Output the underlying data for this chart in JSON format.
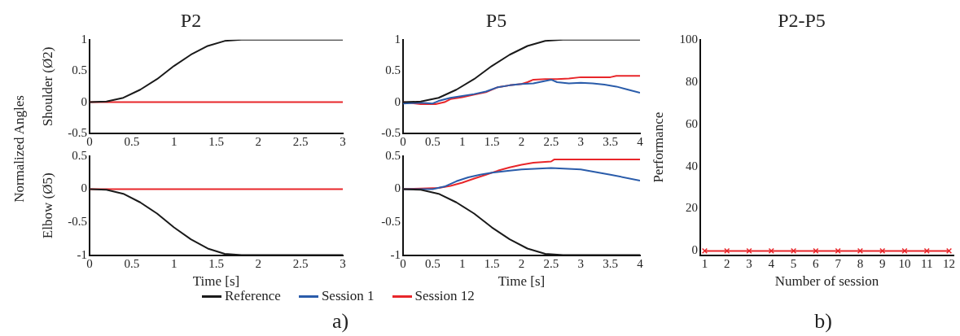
{
  "chart_data": [
    {
      "type": "line",
      "title": "P2",
      "ylabel": "Shoulder (Ø2)",
      "annotations": [
        "Normalized Angles"
      ],
      "xlim": [
        0,
        3
      ],
      "xticks": [
        0,
        0.5,
        1,
        1.5,
        2,
        2.5,
        3
      ],
      "ylim": [
        -0.5,
        1
      ],
      "yticks": [
        -0.5,
        0,
        0.5,
        1
      ],
      "series": [
        {
          "color": "#1a1a1a",
          "x": [
            0,
            0.2,
            0.4,
            0.6,
            0.8,
            1.0,
            1.2,
            1.4,
            1.6,
            1.8,
            3
          ],
          "values": [
            0,
            0.01,
            0.07,
            0.2,
            0.37,
            0.58,
            0.76,
            0.9,
            0.98,
            1.0,
            1.0
          ]
        },
        {
          "color": "#e8262a",
          "x": [
            0,
            3
          ],
          "values": [
            0,
            0
          ]
        }
      ]
    },
    {
      "type": "line",
      "ylabel": "Elbow (Ø5)",
      "xlabel": "Time [s]",
      "xlim": [
        0,
        3
      ],
      "xticks": [
        0,
        0.5,
        1,
        1.5,
        2,
        2.5,
        3
      ],
      "ylim": [
        -1,
        0.5
      ],
      "yticks": [
        -1,
        -0.5,
        0,
        0.5
      ],
      "series": [
        {
          "color": "#1a1a1a",
          "x": [
            0,
            0.2,
            0.4,
            0.6,
            0.8,
            1.0,
            1.2,
            1.4,
            1.6,
            1.8,
            3
          ],
          "values": [
            0,
            -0.01,
            -0.07,
            -0.2,
            -0.37,
            -0.58,
            -0.76,
            -0.9,
            -0.98,
            -1.0,
            -1.0
          ]
        },
        {
          "color": "#e8262a",
          "x": [
            0,
            3
          ],
          "values": [
            0,
            0
          ]
        }
      ]
    },
    {
      "type": "line",
      "title": "P5",
      "xlim": [
        0,
        4
      ],
      "xticks": [
        0,
        0.5,
        1,
        1.5,
        2,
        2.5,
        3,
        3.5,
        4
      ],
      "ylim": [
        -0.5,
        1
      ],
      "yticks": [
        -0.5,
        0,
        0.5,
        1
      ],
      "series": [
        {
          "color": "#1a1a1a",
          "x": [
            0,
            0.3,
            0.6,
            0.9,
            1.2,
            1.5,
            1.8,
            2.1,
            2.4,
            2.7,
            4
          ],
          "values": [
            0,
            0.01,
            0.07,
            0.2,
            0.37,
            0.58,
            0.76,
            0.9,
            0.98,
            1.0,
            1.0
          ]
        },
        {
          "color": "#2a5caa",
          "x": [
            0,
            0.3,
            0.5,
            0.6,
            0.8,
            1.0,
            1.2,
            1.4,
            1.6,
            1.8,
            2.0,
            2.2,
            2.4,
            2.5,
            2.6,
            2.8,
            3.0,
            3.2,
            3.4,
            3.6,
            3.8,
            4.0
          ],
          "values": [
            -0.02,
            -0.01,
            -0.02,
            0.02,
            0.07,
            0.1,
            0.13,
            0.17,
            0.24,
            0.27,
            0.29,
            0.3,
            0.34,
            0.36,
            0.32,
            0.3,
            0.31,
            0.3,
            0.28,
            0.25,
            0.2,
            0.15
          ]
        },
        {
          "color": "#e8262a",
          "x": [
            0,
            0.3,
            0.55,
            0.7,
            0.8,
            1.0,
            1.2,
            1.4,
            1.6,
            1.8,
            2.0,
            2.1,
            2.2,
            2.4,
            2.6,
            2.8,
            3.0,
            3.5,
            3.6,
            4.0
          ],
          "values": [
            0,
            -0.03,
            -0.03,
            0,
            0.05,
            0.08,
            0.12,
            0.16,
            0.24,
            0.27,
            0.29,
            0.32,
            0.36,
            0.37,
            0.37,
            0.38,
            0.4,
            0.4,
            0.42,
            0.42
          ]
        }
      ]
    },
    {
      "type": "line",
      "xlabel": "Time [s]",
      "legend": "bottom",
      "annotations": [
        "a)"
      ],
      "xlim": [
        0,
        4
      ],
      "xticks": [
        0,
        0.5,
        1,
        1.5,
        2,
        2.5,
        3,
        3.5,
        4
      ],
      "ylim": [
        -1,
        0.5
      ],
      "yticks": [
        -1,
        -0.5,
        0,
        0.5
      ],
      "series": [
        {
          "name": "Reference",
          "color": "#1a1a1a",
          "x": [
            0,
            0.3,
            0.6,
            0.9,
            1.2,
            1.5,
            1.8,
            2.1,
            2.4,
            2.7,
            4
          ],
          "values": [
            0,
            -0.01,
            -0.07,
            -0.2,
            -0.37,
            -0.58,
            -0.76,
            -0.9,
            -0.98,
            -1.0,
            -1.0
          ]
        },
        {
          "name": "Session 1",
          "color": "#2a5caa",
          "x": [
            0,
            0.5,
            0.7,
            0.9,
            1.1,
            1.3,
            1.5,
            1.8,
            2.0,
            2.5,
            3.0,
            3.5,
            4.0
          ],
          "values": [
            0,
            0,
            0.04,
            0.12,
            0.18,
            0.22,
            0.25,
            0.28,
            0.3,
            0.32,
            0.3,
            0.22,
            0.13
          ]
        },
        {
          "name": "Session 12",
          "color": "#e8262a",
          "x": [
            0,
            0.3,
            0.6,
            0.8,
            1.0,
            1.2,
            1.4,
            1.6,
            1.8,
            2.0,
            2.2,
            2.5,
            2.55,
            4.0
          ],
          "values": [
            0,
            0.01,
            0.02,
            0.05,
            0.1,
            0.16,
            0.22,
            0.28,
            0.33,
            0.37,
            0.4,
            0.42,
            0.45,
            0.45
          ]
        }
      ]
    },
    {
      "type": "line",
      "title": "P2-P5",
      "xlabel": "Number of session",
      "ylabel": "Performance",
      "annotations": [
        "b)"
      ],
      "marker": "cross",
      "x": [
        1,
        2,
        3,
        4,
        5,
        6,
        7,
        8,
        9,
        10,
        11,
        12
      ],
      "xlim": [
        0.8,
        12.2
      ],
      "xticks": [
        1,
        2,
        3,
        4,
        5,
        6,
        7,
        8,
        9,
        10,
        11,
        12
      ],
      "ylim": [
        -2,
        100
      ],
      "yticks": [
        0,
        20,
        40,
        60,
        80,
        100
      ],
      "series": [
        {
          "color": "#e8262a",
          "values": [
            0,
            0,
            0,
            0,
            0,
            0,
            0,
            0,
            0,
            0,
            0,
            0
          ]
        }
      ]
    }
  ]
}
